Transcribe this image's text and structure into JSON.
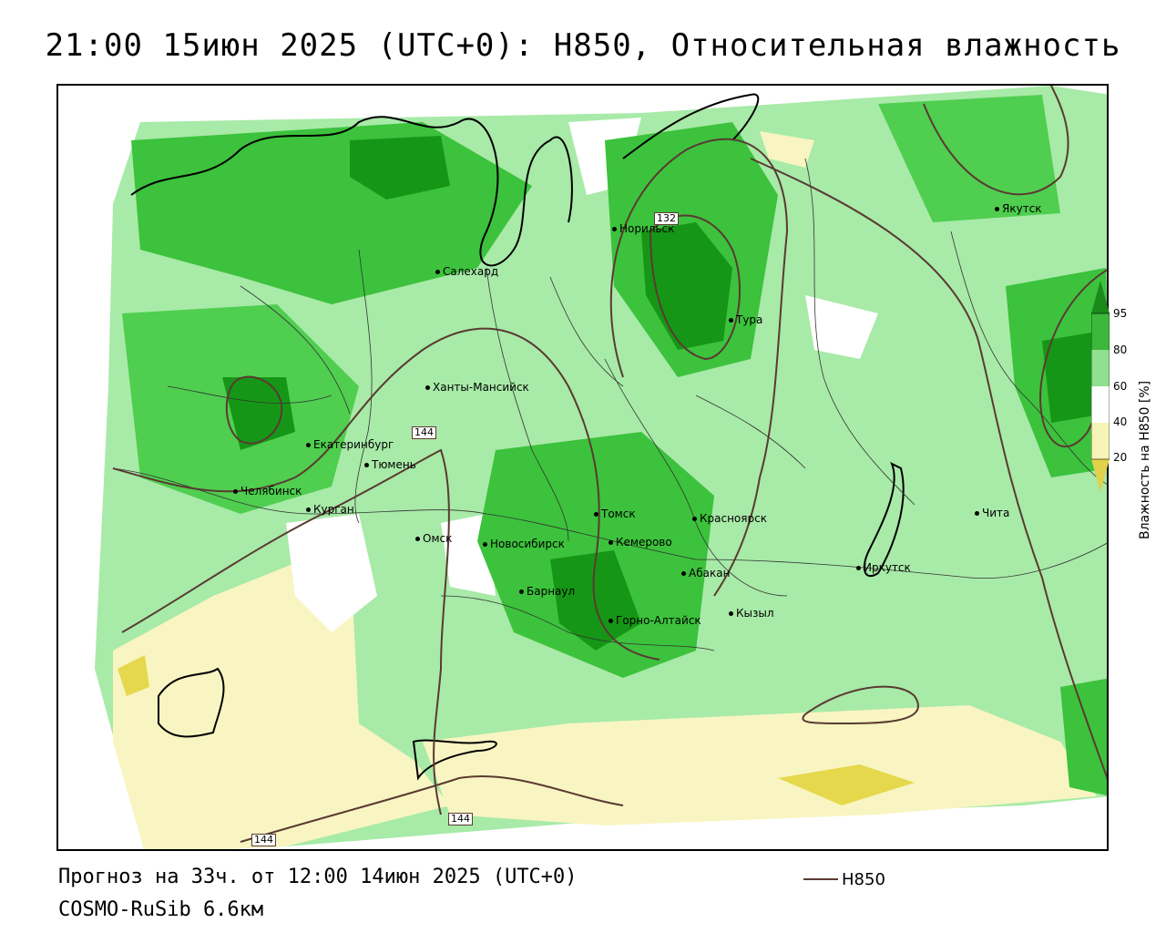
{
  "title": "21:00 15июн 2025 (UTC+0): H850, Относительная влажность",
  "footer": {
    "forecast": "Прогноз на 33ч. от 12:00 14июн 2025 (UTC+0)",
    "model": "COSMO-RuSib 6.6км"
  },
  "key": {
    "label": "H850"
  },
  "legend": {
    "title": "Влажность на H850 [%]",
    "ticks": [
      "95",
      "80",
      "60",
      "40",
      "20"
    ],
    "colors": [
      "#1a8a1a",
      "#3cb83c",
      "#8fe08f",
      "#f6f3b8",
      "#e0d24a"
    ]
  },
  "contour_labels": [
    "132",
    "144",
    "144",
    "144"
  ],
  "cities": [
    {
      "name": "Якутск"
    },
    {
      "name": "Норильск"
    },
    {
      "name": "Салехард"
    },
    {
      "name": "Тура"
    },
    {
      "name": "Ханты-Мансийск"
    },
    {
      "name": "Екатеринбург"
    },
    {
      "name": "Тюмень"
    },
    {
      "name": "Челябинск"
    },
    {
      "name": "Курган"
    },
    {
      "name": "Томск"
    },
    {
      "name": "Красноярск"
    },
    {
      "name": "Омск"
    },
    {
      "name": "Новосибирск"
    },
    {
      "name": "Кемерово"
    },
    {
      "name": "Чита"
    },
    {
      "name": "Иркутск"
    },
    {
      "name": "Абакан"
    },
    {
      "name": "Барнаул"
    },
    {
      "name": "Кызыл"
    },
    {
      "name": "Горно-Алтайск"
    }
  ]
}
